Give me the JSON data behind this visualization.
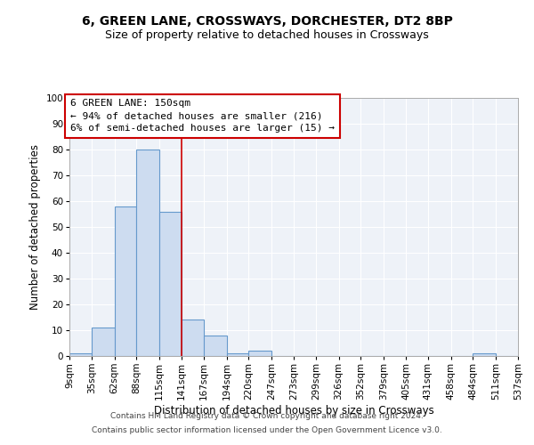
{
  "title1": "6, GREEN LANE, CROSSWAYS, DORCHESTER, DT2 8BP",
  "title2": "Size of property relative to detached houses in Crossways",
  "xlabel": "Distribution of detached houses by size in Crossways",
  "ylabel": "Number of detached properties",
  "bin_edges": [
    9,
    35,
    62,
    88,
    115,
    141,
    167,
    194,
    220,
    247,
    273,
    299,
    326,
    352,
    379,
    405,
    431,
    458,
    484,
    511,
    537
  ],
  "bar_heights": [
    1,
    11,
    58,
    80,
    56,
    14,
    8,
    1,
    2,
    0,
    0,
    0,
    0,
    0,
    0,
    0,
    0,
    0,
    1,
    0
  ],
  "bar_color": "#cddcf0",
  "bar_edgecolor": "#6699cc",
  "red_line_x": 141,
  "annotation_text": "6 GREEN LANE: 150sqm\n← 94% of detached houses are smaller (216)\n6% of semi-detached houses are larger (15) →",
  "annotation_box_color": "#ffffff",
  "annotation_box_edgecolor": "#cc0000",
  "ylim": [
    0,
    100
  ],
  "yticks": [
    0,
    10,
    20,
    30,
    40,
    50,
    60,
    70,
    80,
    90,
    100
  ],
  "xtick_labels": [
    "9sqm",
    "35sqm",
    "62sqm",
    "88sqm",
    "115sqm",
    "141sqm",
    "167sqm",
    "194sqm",
    "220sqm",
    "247sqm",
    "273sqm",
    "299sqm",
    "326sqm",
    "352sqm",
    "379sqm",
    "405sqm",
    "431sqm",
    "458sqm",
    "484sqm",
    "511sqm",
    "537sqm"
  ],
  "footnote1": "Contains HM Land Registry data © Crown copyright and database right 2024.",
  "footnote2": "Contains public sector information licensed under the Open Government Licence v3.0.",
  "bg_color": "#ffffff",
  "plot_bg_color": "#eef2f8",
  "grid_color": "#ffffff",
  "title1_fontsize": 10,
  "title2_fontsize": 9,
  "xlabel_fontsize": 8.5,
  "ylabel_fontsize": 8.5,
  "tick_fontsize": 7.5,
  "annotation_fontsize": 8,
  "footnote_fontsize": 6.5
}
